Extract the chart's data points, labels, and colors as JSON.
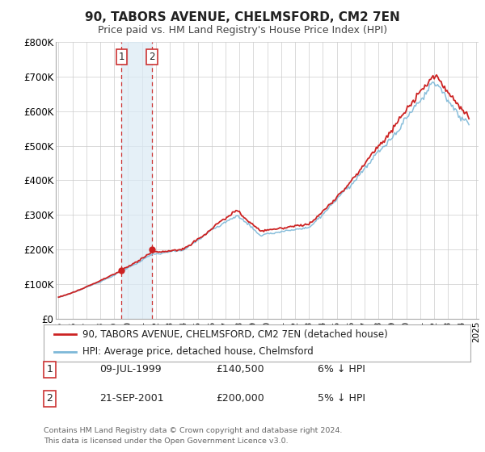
{
  "title": "90, TABORS AVENUE, CHELMSFORD, CM2 7EN",
  "subtitle": "Price paid vs. HM Land Registry's House Price Index (HPI)",
  "ylim": [
    0,
    800000
  ],
  "yticks": [
    0,
    100000,
    200000,
    300000,
    400000,
    500000,
    600000,
    700000,
    800000
  ],
  "ytick_labels": [
    "£0",
    "£100K",
    "£200K",
    "£300K",
    "£400K",
    "£500K",
    "£600K",
    "£700K",
    "£800K"
  ],
  "sale1_year": 1999.52,
  "sale1_price": 140500,
  "sale2_year": 2001.72,
  "sale2_price": 200000,
  "hpi_color": "#7db8d8",
  "price_color": "#cc2222",
  "shade_color": "#daeaf5",
  "vline_color": "#cc3333",
  "legend_label_price": "90, TABORS AVENUE, CHELMSFORD, CM2 7EN (detached house)",
  "legend_label_hpi": "HPI: Average price, detached house, Chelmsford",
  "table_row1": [
    "1",
    "09-JUL-1999",
    "£140,500",
    "6% ↓ HPI"
  ],
  "table_row2": [
    "2",
    "21-SEP-2001",
    "£200,000",
    "5% ↓ HPI"
  ],
  "footnote1": "Contains HM Land Registry data © Crown copyright and database right 2024.",
  "footnote2": "This data is licensed under the Open Government Licence v3.0.",
  "background_color": "#ffffff",
  "grid_color": "#cccccc",
  "xmin": 1994.8,
  "xmax": 2025.2
}
